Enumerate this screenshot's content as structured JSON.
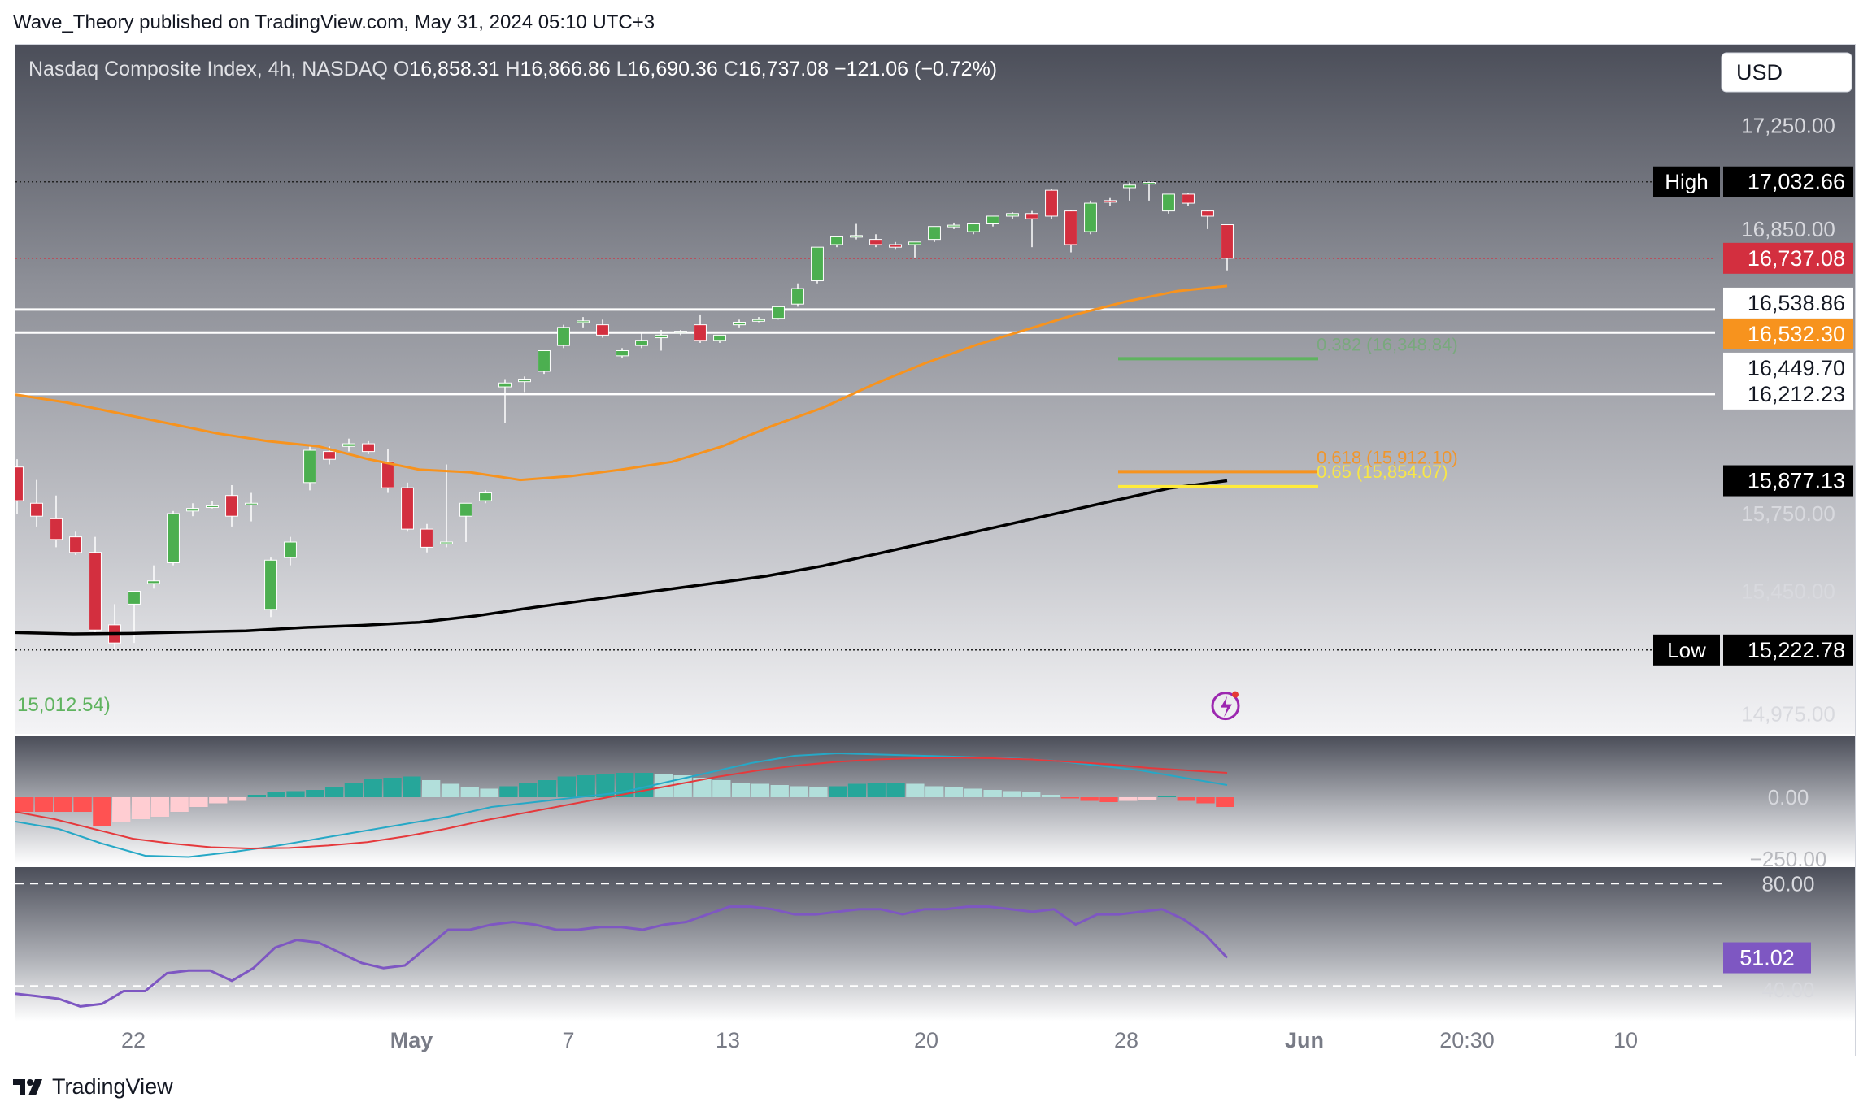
{
  "caption": "Wave_Theory published on TradingView.com, May 31, 2024 05:10 UTC+3",
  "header": {
    "symbol": "Nasdaq Composite Index, 4h, NASDAQ",
    "open_label": "O",
    "open": "16,858.31",
    "high_label": "H",
    "high": "16,866.86",
    "low_label": "L",
    "low": "16,690.36",
    "close_label": "C",
    "close": "16,737.08",
    "change": "−121.06 (−0.72%)",
    "currency_button": "USD"
  },
  "brand": {
    "name": "TradingView",
    "logo_icon": "tradingview-logo-icon"
  },
  "colors": {
    "up": "#4caf50",
    "down": "#d32f3f",
    "ema50": "#f7931e",
    "ema200": "#000000",
    "fib_green": "#5fb35f",
    "fib_orange": "#f7931e",
    "fib_yellow": "#ffeb3b",
    "macd_line": "#26a8c6",
    "signal_line": "#e5393c",
    "rsi": "#7e57c2",
    "high_label_bg": "#000000",
    "price_label_bg": "#d32f3f",
    "ema_label_bg": "#f7931e"
  },
  "chart_data": [
    {
      "type": "candlestick",
      "title": "Nasdaq Composite Index, 4h, NASDAQ",
      "y_ticks": [
        "17,250.00",
        "16,850.00",
        "15,750.00",
        "15,450.00",
        "14,975.00"
      ],
      "ylim": [
        14930,
        17500
      ],
      "x_ticks": [
        "22",
        "May",
        "7",
        "13",
        "20",
        "28",
        "Jun",
        "20:30",
        "10"
      ],
      "candles": [
        {
          "o": 15930,
          "h": 15960,
          "c": 15800,
          "l": 15750
        },
        {
          "o": 15790,
          "h": 15880,
          "c": 15740,
          "l": 15700
        },
        {
          "o": 15730,
          "h": 15820,
          "c": 15650,
          "l": 15620
        },
        {
          "o": 15660,
          "h": 15680,
          "c": 15600,
          "l": 15590
        },
        {
          "o": 15600,
          "h": 15660,
          "c": 15300,
          "l": 15290
        },
        {
          "o": 15320,
          "h": 15400,
          "c": 15250,
          "l": 15222.78
        },
        {
          "o": 15400,
          "h": 15430,
          "c": 15450,
          "l": 15250
        },
        {
          "o": 15480,
          "h": 15550,
          "c": 15490,
          "l": 15460
        },
        {
          "o": 15560,
          "h": 15760,
          "c": 15750,
          "l": 15550
        },
        {
          "o": 15760,
          "h": 15790,
          "c": 15770,
          "l": 15740
        },
        {
          "o": 15780,
          "h": 15800,
          "c": 15780,
          "l": 15770
        },
        {
          "o": 15820,
          "h": 15860,
          "c": 15740,
          "l": 15700
        },
        {
          "o": 15790,
          "h": 15830,
          "c": 15790,
          "l": 15720
        },
        {
          "o": 15380,
          "h": 15580,
          "c": 15570,
          "l": 15350
        },
        {
          "o": 15580,
          "h": 15660,
          "c": 15640,
          "l": 15550
        },
        {
          "o": 15870,
          "h": 16010,
          "c": 15995,
          "l": 15840
        },
        {
          "o": 15990,
          "h": 16010,
          "c": 15960,
          "l": 15940
        },
        {
          "o": 16010,
          "h": 16040,
          "c": 16020,
          "l": 15990
        },
        {
          "o": 16020,
          "h": 16030,
          "c": 15990,
          "l": 15980
        },
        {
          "o": 15950,
          "h": 16000,
          "c": 15850,
          "l": 15830
        },
        {
          "o": 15850,
          "h": 15870,
          "c": 15690,
          "l": 15680
        },
        {
          "o": 15690,
          "h": 15710,
          "c": 15620,
          "l": 15600
        },
        {
          "o": 15640,
          "h": 15940,
          "c": 15640,
          "l": 15620
        },
        {
          "o": 15740,
          "h": 15790,
          "c": 15790,
          "l": 15640
        },
        {
          "o": 15800,
          "h": 15840,
          "c": 15830,
          "l": 15790
        },
        {
          "o": 16240,
          "h": 16270,
          "c": 16255,
          "l": 16100
        },
        {
          "o": 16260,
          "h": 16280,
          "c": 16270,
          "l": 16220
        },
        {
          "o": 16300,
          "h": 16380,
          "c": 16380,
          "l": 16290
        },
        {
          "o": 16400,
          "h": 16480,
          "c": 16470,
          "l": 16390
        },
        {
          "o": 16490,
          "h": 16510,
          "c": 16495,
          "l": 16470
        },
        {
          "o": 16480,
          "h": 16500,
          "c": 16440,
          "l": 16430
        },
        {
          "o": 16360,
          "h": 16390,
          "c": 16380,
          "l": 16350
        },
        {
          "o": 16400,
          "h": 16450,
          "c": 16420,
          "l": 16390
        },
        {
          "o": 16430,
          "h": 16460,
          "c": 16440,
          "l": 16380
        },
        {
          "o": 16450,
          "h": 16460,
          "c": 16455,
          "l": 16440
        },
        {
          "o": 16480,
          "h": 16520,
          "c": 16420,
          "l": 16410
        },
        {
          "o": 16420,
          "h": 16440,
          "c": 16440,
          "l": 16410
        },
        {
          "o": 16480,
          "h": 16500,
          "c": 16490,
          "l": 16470
        },
        {
          "o": 16500,
          "h": 16510,
          "c": 16500,
          "l": 16490
        },
        {
          "o": 16505,
          "h": 16530,
          "c": 16550,
          "l": 16500
        },
        {
          "o": 16560,
          "h": 16640,
          "c": 16620,
          "l": 16550
        },
        {
          "o": 16650,
          "h": 16780,
          "c": 16780,
          "l": 16640
        },
        {
          "o": 16790,
          "h": 16810,
          "c": 16820,
          "l": 16780
        },
        {
          "o": 16820,
          "h": 16870,
          "c": 16825,
          "l": 16810
        },
        {
          "o": 16810,
          "h": 16830,
          "c": 16790,
          "l": 16780
        },
        {
          "o": 16790,
          "h": 16800,
          "c": 16780,
          "l": 16770
        },
        {
          "o": 16790,
          "h": 16800,
          "c": 16800,
          "l": 16740
        },
        {
          "o": 16810,
          "h": 16860,
          "c": 16860,
          "l": 16800
        },
        {
          "o": 16860,
          "h": 16875,
          "c": 16865,
          "l": 16850
        },
        {
          "o": 16840,
          "h": 16870,
          "c": 16870,
          "l": 16830
        },
        {
          "o": 16870,
          "h": 16895,
          "c": 16900,
          "l": 16860
        },
        {
          "o": 16900,
          "h": 16915,
          "c": 16910,
          "l": 16890
        },
        {
          "o": 16910,
          "h": 16920,
          "c": 16890,
          "l": 16780
        },
        {
          "o": 17000,
          "h": 17005,
          "c": 16900,
          "l": 16890
        },
        {
          "o": 16920,
          "h": 16925,
          "c": 16790,
          "l": 16760
        },
        {
          "o": 16840,
          "h": 16960,
          "c": 16950,
          "l": 16830
        },
        {
          "o": 16960,
          "h": 16970,
          "c": 16955,
          "l": 16940
        },
        {
          "o": 17010,
          "h": 17030,
          "c": 17020,
          "l": 16960
        },
        {
          "o": 17030,
          "h": 17032.66,
          "c": 17030,
          "l": 16960
        },
        {
          "o": 16920,
          "h": 16985,
          "c": 16985,
          "l": 16910
        },
        {
          "o": 16985,
          "h": 16990,
          "c": 16950,
          "l": 16940
        },
        {
          "o": 16920,
          "h": 16925,
          "c": 16900,
          "l": 16850
        },
        {
          "o": 16866.86,
          "h": 16866.86,
          "c": 16737.08,
          "l": 16690.36
        }
      ],
      "ema50": [
        16210,
        16180,
        16140,
        16100,
        16060,
        16030,
        16010,
        15960,
        15920,
        15910,
        15880,
        15895,
        15920,
        15950,
        16010,
        16090,
        16160,
        16250,
        16330,
        16400,
        16460,
        16520,
        16570,
        16610,
        16630
      ],
      "ema200": [
        15290,
        15285,
        15287,
        15292,
        15297,
        15310,
        15318,
        15330,
        15355,
        15388,
        15418,
        15448,
        15478,
        15508,
        15548,
        15598,
        15648,
        15698,
        15748,
        15798,
        15848,
        15877.13
      ],
      "levels": [
        {
          "label": "High",
          "value": "17,032.66"
        },
        {
          "value": "16,737.08"
        },
        {
          "value": "16,538.86"
        },
        {
          "value": "16,532.30"
        },
        {
          "value": "16,449.70"
        },
        {
          "value": "16,212.23"
        },
        {
          "value": "15,877.13"
        },
        {
          "label": "Low",
          "value": "15,222.78"
        }
      ],
      "fibonacci": [
        {
          "label": "0.382 (16,348.84)",
          "value": 16348.84
        },
        {
          "label": "0.618 (15,912.10)",
          "value": 15912.1
        },
        {
          "label": "0.65 (15,854.07)",
          "value": 15854.07
        }
      ],
      "extra_label": "15,012.54)"
    },
    {
      "type": "macd",
      "y_ticks": [
        "0.00",
        "−250.00"
      ],
      "histogram": [
        -60,
        -60,
        -60,
        -60,
        -120,
        -100,
        -90,
        -80,
        -60,
        -40,
        -25,
        -15,
        10,
        20,
        25,
        30,
        40,
        60,
        75,
        80,
        85,
        70,
        55,
        40,
        35,
        45,
        60,
        70,
        85,
        90,
        95,
        100,
        100,
        95,
        90,
        80,
        70,
        60,
        55,
        50,
        45,
        40,
        45,
        55,
        60,
        60,
        55,
        45,
        40,
        35,
        30,
        25,
        20,
        10,
        -5,
        -15,
        -20,
        -15,
        -10,
        5,
        -15,
        -25,
        -40
      ],
      "macd_line": [
        -100,
        -130,
        -190,
        -240,
        -245,
        -225,
        -200,
        -170,
        -140,
        -110,
        -80,
        -40,
        -20,
        0,
        20,
        60,
        100,
        140,
        170,
        180,
        175,
        170,
        165,
        160,
        150,
        130,
        110,
        80,
        50
      ],
      "signal_line": [
        -60,
        -90,
        -130,
        -170,
        -190,
        -205,
        -210,
        -208,
        -198,
        -184,
        -160,
        -130,
        -95,
        -65,
        -35,
        -5,
        25,
        55,
        85,
        110,
        130,
        145,
        155,
        160,
        162,
        160,
        155,
        145,
        135,
        120,
        110,
        100
      ]
    },
    {
      "type": "rsi",
      "y_ticks": [
        "80.00",
        "40.00"
      ],
      "value_label": "51.02",
      "values": [
        37,
        36,
        35,
        32,
        33,
        38,
        38,
        45,
        46,
        46,
        42,
        47,
        55,
        58,
        57,
        53,
        49,
        47,
        48,
        55,
        62,
        62,
        64,
        65,
        64,
        62,
        62,
        63,
        63,
        62,
        64,
        65,
        68,
        71,
        71,
        70,
        68,
        68,
        69,
        70,
        70,
        68,
        70,
        70,
        71,
        71,
        70,
        69,
        70,
        64,
        68,
        68,
        69,
        70,
        66,
        60,
        51.02
      ]
    }
  ]
}
